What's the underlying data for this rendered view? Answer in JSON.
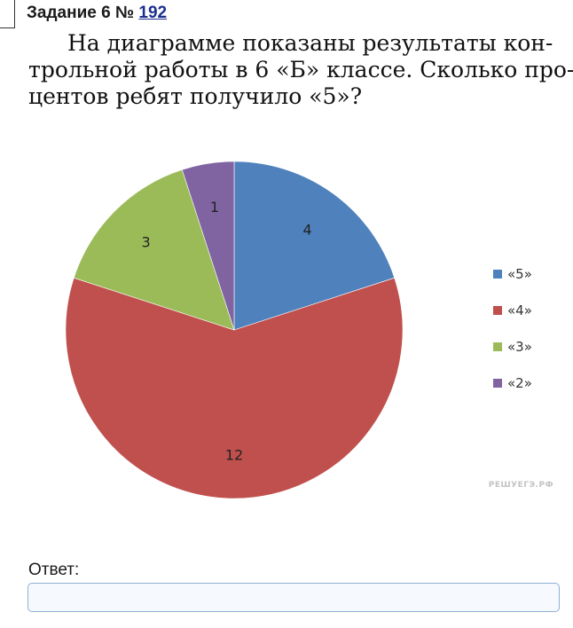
{
  "task": {
    "title": "Задание 6 №",
    "number": "192"
  },
  "question_lines": [
    "На диаграмме показаны результаты кон-",
    "трольной работы в 6 «Б» классе. Сколько про-",
    "центов ребят получило «5»?"
  ],
  "chart_data": {
    "type": "pie",
    "categories": [
      "«5»",
      "«4»",
      "«3»",
      "«2»"
    ],
    "values": [
      4,
      12,
      3,
      1
    ],
    "colors": [
      "#4f81bd",
      "#c0504d",
      "#9bbb59",
      "#8064a2"
    ],
    "legend": "right",
    "watermark": "РЕШУЕГЭ.РФ"
  },
  "answer": {
    "label": "Ответ:",
    "value": ""
  }
}
